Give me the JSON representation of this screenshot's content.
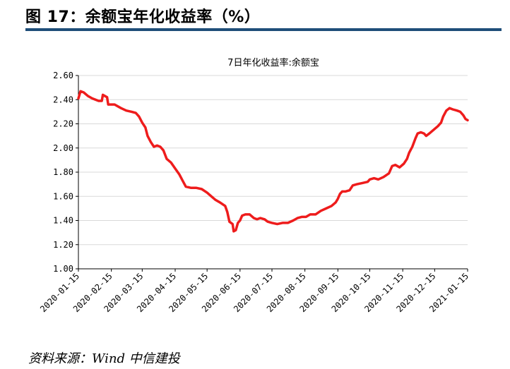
{
  "figure": {
    "title": "图 17：余额宝年化收益率（%）",
    "source": "资料来源：Wind 中信建投"
  },
  "colors": {
    "header_rule": "#1f4e79",
    "series_line": "#ee1c1c",
    "grid": "#d9d9d9",
    "axis": "#000000"
  },
  "chart_data": {
    "type": "line",
    "title": "7日年化收益率:余额宝",
    "xlabel": "",
    "ylabel": "",
    "grid": true,
    "legend": "none",
    "ylim": [
      1.0,
      2.6
    ],
    "yticks": [
      "1.00",
      "1.20",
      "1.40",
      "1.60",
      "1.80",
      "2.00",
      "2.20",
      "2.40",
      "2.60"
    ],
    "xlim": [
      "2020-01-15",
      "2021-01-15"
    ],
    "xticks": [
      "2020-01-15",
      "2020-02-15",
      "2020-03-15",
      "2020-04-15",
      "2020-05-15",
      "2020-06-15",
      "2020-07-15",
      "2020-08-15",
      "2020-09-15",
      "2020-10-15",
      "2020-11-15",
      "2020-12-15",
      "2021-01-15"
    ],
    "series": [
      {
        "name": "",
        "points": [
          [
            "2020-01-15",
            2.41
          ],
          [
            "2020-01-17",
            2.47
          ],
          [
            "2020-01-20",
            2.46
          ],
          [
            "2020-01-24",
            2.43
          ],
          [
            "2020-01-28",
            2.41
          ],
          [
            "2020-02-03",
            2.39
          ],
          [
            "2020-02-06",
            2.39
          ],
          [
            "2020-02-07",
            2.44
          ],
          [
            "2020-02-11",
            2.42
          ],
          [
            "2020-02-12",
            2.36
          ],
          [
            "2020-02-18",
            2.36
          ],
          [
            "2020-02-24",
            2.33
          ],
          [
            "2020-02-29",
            2.31
          ],
          [
            "2020-03-05",
            2.3
          ],
          [
            "2020-03-09",
            2.29
          ],
          [
            "2020-03-12",
            2.26
          ],
          [
            "2020-03-15",
            2.21
          ],
          [
            "2020-03-18",
            2.17
          ],
          [
            "2020-03-20",
            2.1
          ],
          [
            "2020-03-23",
            2.05
          ],
          [
            "2020-03-26",
            2.01
          ],
          [
            "2020-03-29",
            2.02
          ],
          [
            "2020-04-01",
            2.01
          ],
          [
            "2020-04-04",
            1.98
          ],
          [
            "2020-04-07",
            1.91
          ],
          [
            "2020-04-11",
            1.88
          ],
          [
            "2020-04-15",
            1.83
          ],
          [
            "2020-04-19",
            1.78
          ],
          [
            "2020-04-22",
            1.73
          ],
          [
            "2020-04-25",
            1.68
          ],
          [
            "2020-04-30",
            1.67
          ],
          [
            "2020-05-05",
            1.67
          ],
          [
            "2020-05-10",
            1.66
          ],
          [
            "2020-05-15",
            1.63
          ],
          [
            "2020-05-19",
            1.6
          ],
          [
            "2020-05-23",
            1.57
          ],
          [
            "2020-05-27",
            1.55
          ],
          [
            "2020-06-01",
            1.52
          ],
          [
            "2020-06-03",
            1.47
          ],
          [
            "2020-06-05",
            1.39
          ],
          [
            "2020-06-08",
            1.37
          ],
          [
            "2020-06-09",
            1.31
          ],
          [
            "2020-06-11",
            1.32
          ],
          [
            "2020-06-13",
            1.38
          ],
          [
            "2020-06-15",
            1.4
          ],
          [
            "2020-06-17",
            1.44
          ],
          [
            "2020-06-20",
            1.45
          ],
          [
            "2020-06-24",
            1.45
          ],
          [
            "2020-06-28",
            1.42
          ],
          [
            "2020-07-01",
            1.41
          ],
          [
            "2020-07-04",
            1.42
          ],
          [
            "2020-07-08",
            1.41
          ],
          [
            "2020-07-11",
            1.39
          ],
          [
            "2020-07-15",
            1.38
          ],
          [
            "2020-07-20",
            1.37
          ],
          [
            "2020-07-25",
            1.38
          ],
          [
            "2020-07-30",
            1.38
          ],
          [
            "2020-08-04",
            1.4
          ],
          [
            "2020-08-08",
            1.42
          ],
          [
            "2020-08-12",
            1.43
          ],
          [
            "2020-08-16",
            1.43
          ],
          [
            "2020-08-20",
            1.45
          ],
          [
            "2020-08-25",
            1.45
          ],
          [
            "2020-08-30",
            1.48
          ],
          [
            "2020-09-04",
            1.5
          ],
          [
            "2020-09-09",
            1.52
          ],
          [
            "2020-09-13",
            1.55
          ],
          [
            "2020-09-15",
            1.58
          ],
          [
            "2020-09-17",
            1.62
          ],
          [
            "2020-09-19",
            1.64
          ],
          [
            "2020-09-22",
            1.64
          ],
          [
            "2020-09-26",
            1.65
          ],
          [
            "2020-09-29",
            1.69
          ],
          [
            "2020-10-03",
            1.7
          ],
          [
            "2020-10-08",
            1.71
          ],
          [
            "2020-10-13",
            1.72
          ],
          [
            "2020-10-15",
            1.74
          ],
          [
            "2020-10-19",
            1.75
          ],
          [
            "2020-10-23",
            1.74
          ],
          [
            "2020-10-28",
            1.76
          ],
          [
            "2020-11-02",
            1.79
          ],
          [
            "2020-11-05",
            1.85
          ],
          [
            "2020-11-08",
            1.86
          ],
          [
            "2020-11-12",
            1.84
          ],
          [
            "2020-11-16",
            1.87
          ],
          [
            "2020-11-19",
            1.91
          ],
          [
            "2020-11-21",
            1.96
          ],
          [
            "2020-11-24",
            2.01
          ],
          [
            "2020-11-27",
            2.08
          ],
          [
            "2020-11-29",
            2.12
          ],
          [
            "2020-12-02",
            2.13
          ],
          [
            "2020-12-05",
            2.12
          ],
          [
            "2020-12-07",
            2.1
          ],
          [
            "2020-12-10",
            2.12
          ],
          [
            "2020-12-14",
            2.15
          ],
          [
            "2020-12-18",
            2.18
          ],
          [
            "2020-12-21",
            2.21
          ],
          [
            "2020-12-23",
            2.26
          ],
          [
            "2020-12-26",
            2.31
          ],
          [
            "2020-12-29",
            2.33
          ],
          [
            "2021-01-01",
            2.32
          ],
          [
            "2021-01-05",
            2.31
          ],
          [
            "2021-01-08",
            2.3
          ],
          [
            "2021-01-11",
            2.27
          ],
          [
            "2021-01-13",
            2.24
          ],
          [
            "2021-01-15",
            2.23
          ]
        ]
      }
    ]
  }
}
